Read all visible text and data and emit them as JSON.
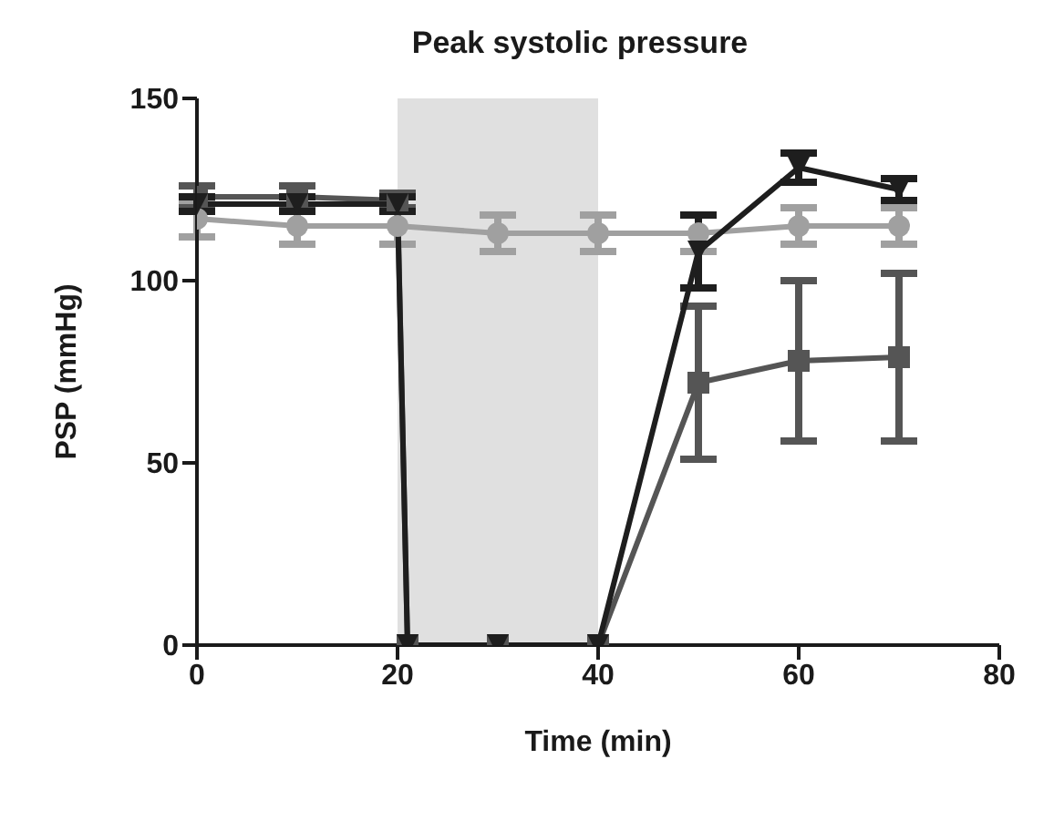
{
  "chart_data": {
    "type": "line",
    "title": "Peak systolic pressure",
    "xlabel": "Time (min)",
    "ylabel": "PSP (mmHg)",
    "xlim": [
      0,
      80
    ],
    "xticks": [
      0,
      20,
      40,
      60,
      80
    ],
    "ylim": [
      0,
      150
    ],
    "yticks": [
      0,
      50,
      100,
      150
    ],
    "grid": false,
    "bands": [
      {
        "axis": "x",
        "from": 20,
        "to": 40,
        "color": "#e0e0e0"
      }
    ],
    "series": [
      {
        "color": "#a0a0a0",
        "marker": "circle",
        "x": [
          0,
          10,
          20,
          30,
          40,
          50,
          60,
          70
        ],
        "values": [
          117,
          115,
          115,
          113,
          113,
          113,
          115,
          115
        ],
        "errors": [
          5,
          5,
          5,
          5,
          5,
          5,
          5,
          5
        ]
      },
      {
        "color": "#555555",
        "marker": "square",
        "x": [
          0,
          10,
          20,
          21,
          30,
          40,
          50,
          60,
          70
        ],
        "values": [
          123,
          123,
          122,
          0,
          0,
          0,
          72,
          78,
          79
        ],
        "errors": [
          3,
          3,
          2,
          null,
          null,
          null,
          21,
          22,
          23
        ]
      },
      {
        "color": "#1e1e1e",
        "marker": "triangle",
        "x": [
          0,
          10,
          20,
          21,
          30,
          40,
          50,
          60,
          70
        ],
        "values": [
          121,
          121,
          121,
          0,
          0,
          0,
          108,
          131,
          125
        ],
        "errors": [
          2,
          2,
          2,
          null,
          null,
          null,
          10,
          4,
          3
        ]
      }
    ]
  }
}
